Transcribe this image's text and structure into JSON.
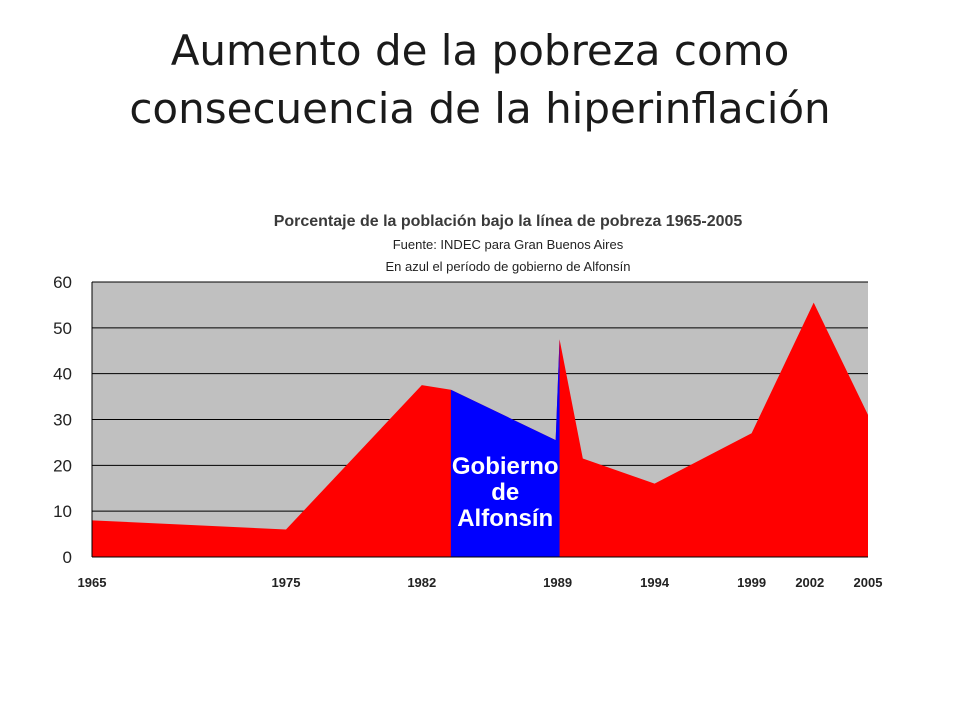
{
  "slide": {
    "title_line1": "Aumento de la pobreza como",
    "title_line2": "consecuencia de la hiperinflación"
  },
  "chart_data": {
    "type": "area",
    "title": "Porcentaje de la población bajo la línea de pobreza 1965-2005",
    "subtitle_lines": [
      "Fuente: INDEC para Gran Buenos Aires",
      "En azul el período de gobierno de Alfonsín"
    ],
    "xlabel": "",
    "ylabel": "",
    "ylim": [
      0,
      60
    ],
    "xlim": [
      1965,
      2005
    ],
    "y_ticks": [
      0,
      10,
      20,
      30,
      40,
      50,
      60
    ],
    "x_ticks": [
      1965,
      1975,
      1982,
      1989,
      1994,
      1999,
      2002,
      2005
    ],
    "grid": true,
    "series": [
      {
        "x": [
          1965,
          1975,
          1982,
          1983.5,
          1988.9,
          1989.1,
          1990.3,
          1994,
          1999,
          2002.2,
          2005
        ],
        "values": [
          8,
          6,
          37.5,
          36.5,
          25.5,
          47.5,
          21.5,
          16,
          27,
          55.5,
          31
        ]
      }
    ],
    "highlight": {
      "x_start": 1983.5,
      "x_end": 1989.1,
      "label_lines": [
        "Gobierno",
        "de",
        "Alfonsín"
      ],
      "color": "#0000ff"
    },
    "colors": {
      "fill": "#ff0000",
      "highlight": "#0000ff",
      "plot_background": "#c0c0c0",
      "gridline": "#000000"
    }
  }
}
